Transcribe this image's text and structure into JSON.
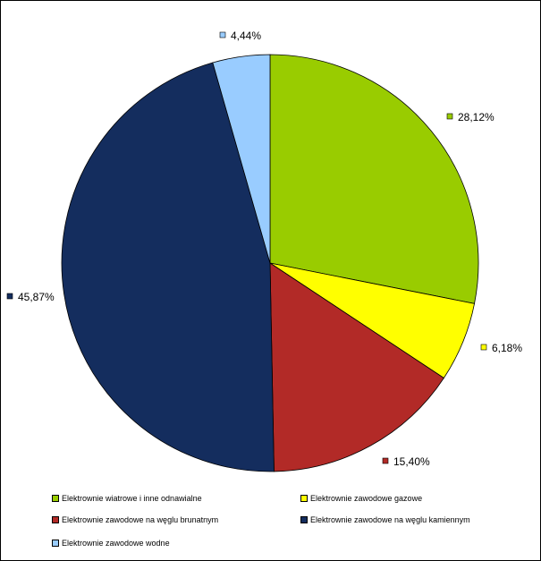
{
  "chart_data": {
    "type": "pie",
    "title": "",
    "slices": [
      {
        "name": "Elektrownie wiatrowe i inne odnawialne",
        "value": 28.12,
        "label": "28,12%",
        "color": "#99CC00"
      },
      {
        "name": "Elektrownie zawodowe gazowe",
        "value": 6.18,
        "label": "6,18%",
        "color": "#FFFF00"
      },
      {
        "name": "Elektrownie zawodowe na węglu brunatnym",
        "value": 15.4,
        "label": "15,40%",
        "color": "#B22A27"
      },
      {
        "name": "Elektrownie zawodowe na węglu kamiennym",
        "value": 45.87,
        "label": "45,87%",
        "color": "#142D5E"
      },
      {
        "name": "Elektrownie zawodowe wodne",
        "value": 4.44,
        "label": "4,44%",
        "color": "#99CCFF"
      }
    ],
    "start_angle": "12 o'clock",
    "direction": "clockwise",
    "legend_position": "bottom",
    "border_color": "#000000"
  }
}
